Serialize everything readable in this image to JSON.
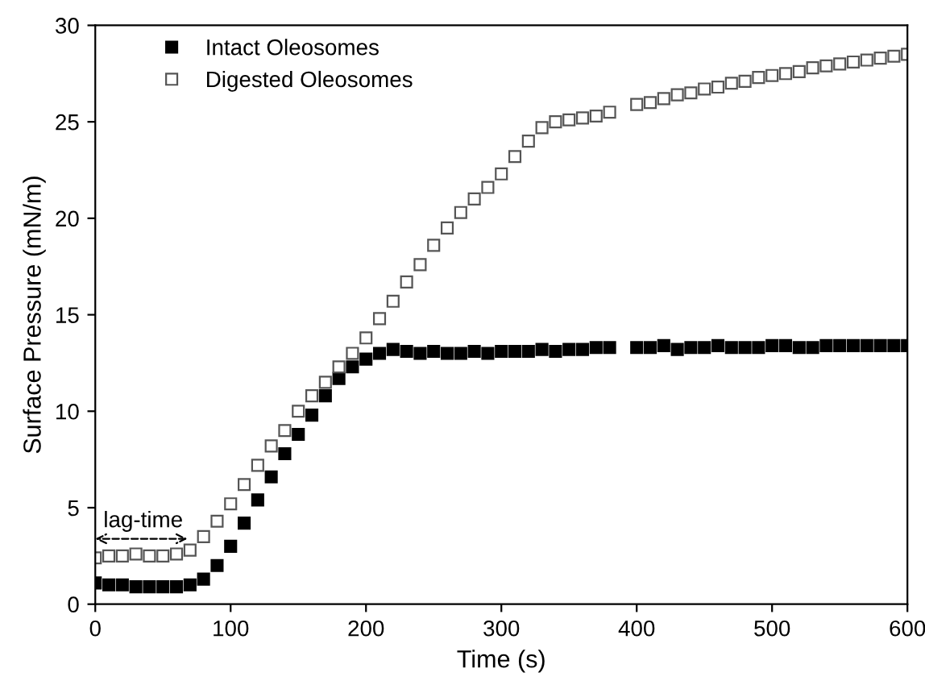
{
  "chart_data": {
    "type": "scatter",
    "xlabel": "Time (s)",
    "ylabel": "Surface Pressure (mN/m)",
    "xlim": [
      0,
      600
    ],
    "ylim": [
      0,
      30
    ],
    "xticks": [
      0,
      100,
      200,
      300,
      400,
      500,
      600
    ],
    "yticks": [
      0,
      5,
      10,
      15,
      20,
      25,
      30
    ],
    "marker": "square",
    "legend": "top left",
    "grid": false,
    "x": [
      0,
      10,
      20,
      30,
      40,
      50,
      60,
      70,
      80,
      90,
      100,
      110,
      120,
      130,
      140,
      150,
      160,
      170,
      180,
      190,
      200,
      210,
      220,
      230,
      240,
      250,
      260,
      270,
      280,
      290,
      300,
      310,
      320,
      330,
      340,
      350,
      360,
      370,
      380,
      390,
      400,
      410,
      420,
      430,
      440,
      450,
      460,
      470,
      480,
      490,
      500,
      510,
      520,
      530,
      540,
      550,
      560,
      570,
      580,
      590,
      600
    ],
    "series": [
      {
        "name": "Intact Oleosomes",
        "color": "#000000",
        "values": [
          1.1,
          1.0,
          1.0,
          0.9,
          0.9,
          0.9,
          0.9,
          1.0,
          1.3,
          2.0,
          3.0,
          4.2,
          5.4,
          6.6,
          7.8,
          8.8,
          9.8,
          10.8,
          11.7,
          12.3,
          12.7,
          13.0,
          13.2,
          13.1,
          13.0,
          13.1,
          13.0,
          13.0,
          13.1,
          13.0,
          13.1,
          13.1,
          13.1,
          13.2,
          13.1,
          13.2,
          13.2,
          13.3,
          13.3,
          null,
          13.3,
          13.3,
          13.4,
          13.2,
          13.3,
          13.3,
          13.4,
          13.3,
          13.3,
          13.3,
          13.4,
          13.4,
          13.3,
          13.3,
          13.4,
          13.4,
          13.4,
          13.4,
          13.4,
          13.4,
          13.4
        ]
      },
      {
        "name": "Digested Oleosomes",
        "color": "#555555",
        "values": [
          2.4,
          2.5,
          2.5,
          2.6,
          2.5,
          2.5,
          2.6,
          2.8,
          3.5,
          4.3,
          5.2,
          6.2,
          7.2,
          8.2,
          9.0,
          10.0,
          10.8,
          11.5,
          12.3,
          13.0,
          13.8,
          14.8,
          15.7,
          16.7,
          17.6,
          18.6,
          19.5,
          20.3,
          21.0,
          21.6,
          22.3,
          23.2,
          24.0,
          24.7,
          25.0,
          25.1,
          25.2,
          25.3,
          25.5,
          null,
          25.9,
          26.0,
          26.2,
          26.4,
          26.5,
          26.7,
          26.8,
          27.0,
          27.1,
          27.3,
          27.4,
          27.5,
          27.6,
          27.8,
          27.9,
          28.0,
          28.1,
          28.2,
          28.3,
          28.4,
          28.5
        ]
      }
    ],
    "annotations": [
      "lag-time"
    ]
  }
}
